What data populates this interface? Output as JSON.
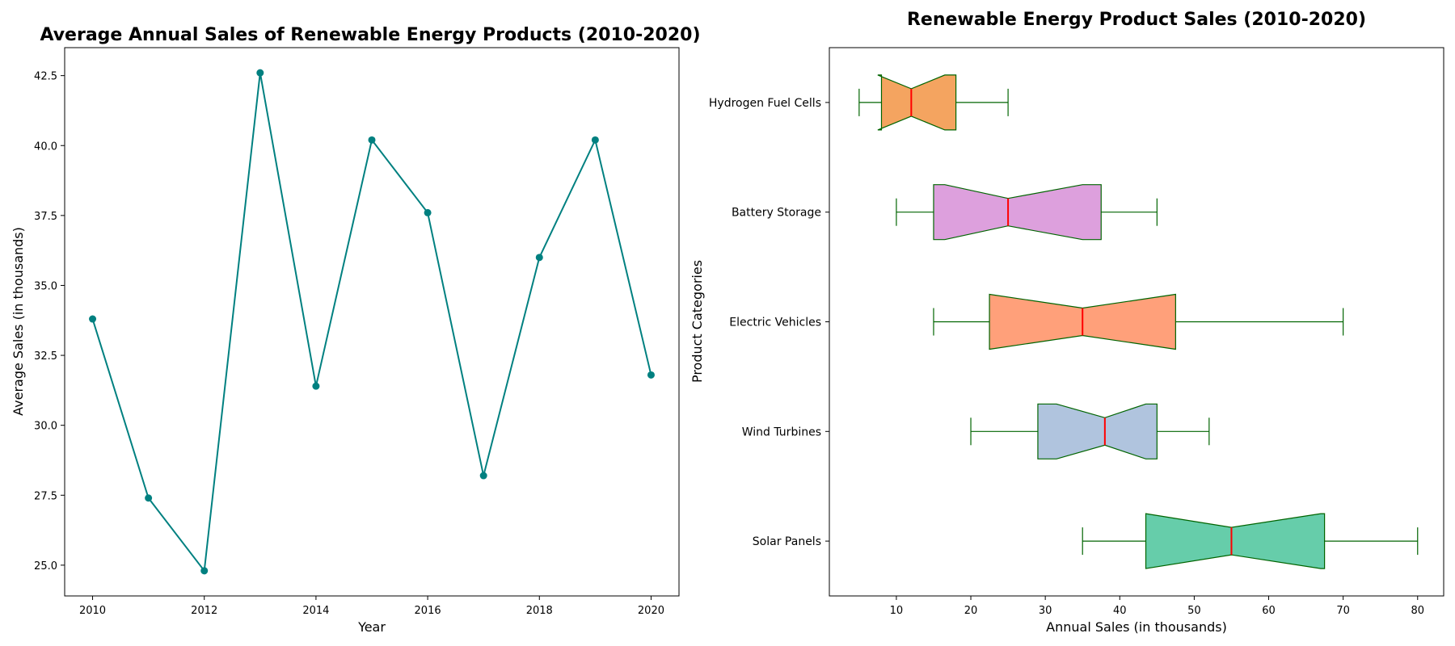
{
  "chart_data": [
    {
      "type": "line",
      "title": "Average Annual Sales of Renewable Energy Products (2010-2020)",
      "xlabel": "Year",
      "ylabel": "Average Sales (in thousands)",
      "x": [
        2010,
        2011,
        2012,
        2013,
        2014,
        2015,
        2016,
        2017,
        2018,
        2019,
        2020
      ],
      "values": [
        33.8,
        27.4,
        24.8,
        42.6,
        31.4,
        40.2,
        37.6,
        28.2,
        36.0,
        40.2,
        31.8
      ],
      "xlim": [
        2009.5,
        2020.5
      ],
      "ylim": [
        23.9,
        43.5
      ],
      "xticks": [
        "2010",
        "2012",
        "2014",
        "2016",
        "2018",
        "2020"
      ],
      "yticks": [
        "25.0",
        "27.5",
        "30.0",
        "32.5",
        "35.0",
        "37.5",
        "40.0",
        "42.5"
      ],
      "color": "#008080",
      "grid": false
    },
    {
      "type": "box",
      "orientation": "horizontal",
      "notched": true,
      "title": "Renewable Energy Product Sales (2010-2020)",
      "xlabel": "Annual Sales (in thousands)",
      "ylabel": "Product Categories",
      "xlim": [
        1,
        83.5
      ],
      "xticks": [
        "10",
        "20",
        "30",
        "40",
        "50",
        "60",
        "70",
        "80"
      ],
      "categories": [
        "Hydrogen Fuel Cells",
        "Battery Storage",
        "Electric Vehicles",
        "Wind Turbines",
        "Solar Panels"
      ],
      "boxes": [
        {
          "category": "Hydrogen Fuel Cells",
          "whislo": 5,
          "q1": 8,
          "med": 12,
          "q3": 18,
          "whishi": 25,
          "notch_lo": 7.5,
          "notch_hi": 16.5,
          "color": "#F4A460"
        },
        {
          "category": "Battery Storage",
          "whislo": 10,
          "q1": 15,
          "med": 25,
          "q3": 37.5,
          "whishi": 45,
          "notch_lo": 16.5,
          "notch_hi": 35,
          "color": "#DDA0DD"
        },
        {
          "category": "Electric Vehicles",
          "whislo": 15,
          "q1": 22.5,
          "med": 35,
          "q3": 47.5,
          "whishi": 70,
          "notch_lo": 22.5,
          "notch_hi": 47.5,
          "color": "#FFA07A"
        },
        {
          "category": "Wind Turbines",
          "whislo": 20,
          "q1": 29,
          "med": 38,
          "q3": 45,
          "whishi": 52,
          "notch_lo": 31.5,
          "notch_hi": 43.5,
          "color": "#B0C4DE"
        },
        {
          "category": "Solar Panels",
          "whislo": 35,
          "q1": 43.5,
          "med": 55,
          "q3": 67.5,
          "whishi": 80,
          "notch_lo": 43.5,
          "notch_hi": 67,
          "color": "#66CDAA"
        }
      ],
      "edge_color": "#006400",
      "median_color": "#FF0000",
      "grid": false
    }
  ]
}
